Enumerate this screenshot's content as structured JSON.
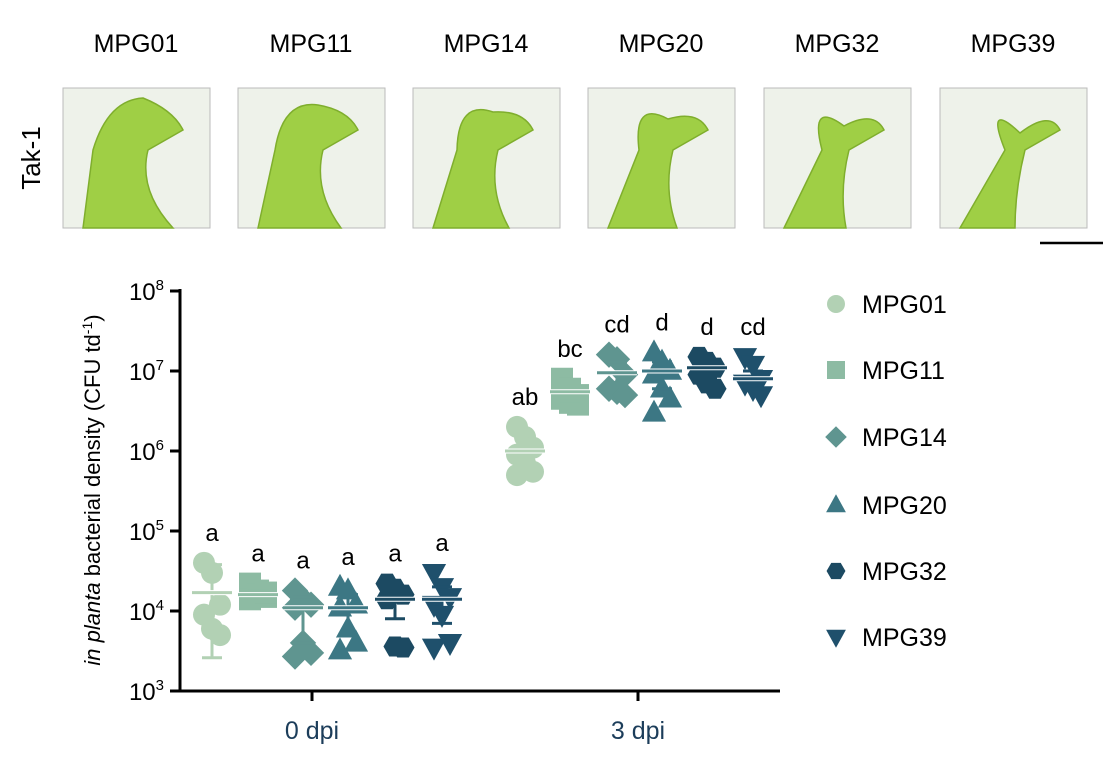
{
  "panel": {
    "row_label": "Tak-1",
    "strains": [
      "MPG01",
      "MPG11",
      "MPG14",
      "MPG20",
      "MPG32",
      "MPG39"
    ]
  },
  "chart_data": {
    "type": "scatter",
    "ylabel_italic": "in planta",
    "ylabel_rest": " bacterial density (CFU td",
    "ylabel_sup": "-1",
    "ylabel_close": ")",
    "yscale": "log",
    "ylim": [
      1000,
      100000000
    ],
    "ytick_exponents": [
      3,
      4,
      5,
      6,
      7,
      8
    ],
    "ytick_base": "10",
    "categories": [
      "0 dpi",
      "3 dpi"
    ],
    "legend_position": "right",
    "series": [
      {
        "name": "MPG01",
        "marker": "circle",
        "color": "#b2d1b4",
        "groups": [
          {
            "values": [
              40000,
              30000,
              12000,
              9000,
              6000,
              5000
            ],
            "mean": 17000,
            "err": [
              2600,
              38000
            ],
            "letter": "a"
          },
          {
            "values": [
              2000000,
              1500000,
              1100000,
              900000,
              700000,
              550000,
              500000
            ],
            "mean": 1000000,
            "err": [
              550000,
              1600000
            ],
            "letter": "ab"
          }
        ]
      },
      {
        "name": "MPG11",
        "marker": "square",
        "color": "#8dbba3",
        "groups": [
          {
            "values": [
              22000,
              18000,
              15000,
              14000,
              16000,
              17000
            ],
            "mean": 16000,
            "err": [
              14000,
              18000
            ],
            "letter": "a"
          },
          {
            "values": [
              8000000,
              6000000,
              5000000,
              4500000,
              4000000,
              3800000
            ],
            "mean": 5500000,
            "err": [
              4200000,
              6500000
            ],
            "letter": "bc"
          }
        ]
      },
      {
        "name": "MPG14",
        "marker": "diamond",
        "color": "#5f9590",
        "groups": [
          {
            "values": [
              18000,
              14000,
              12000,
              11000,
              4000,
              3000,
              2700
            ],
            "mean": 11000,
            "err": [
              4000,
              15000
            ],
            "letter": "a"
          },
          {
            "values": [
              16000000,
              14000000,
              9000000,
              6000000,
              5500000,
              5000000
            ],
            "mean": 9500000,
            "err": [
              6500000,
              13000000
            ],
            "letter": "cd"
          }
        ]
      },
      {
        "name": "MPG20",
        "marker": "triangle-up",
        "color": "#3c7784",
        "groups": [
          {
            "values": [
              20000,
              18000,
              12000,
              11000,
              6000,
              4000,
              3200
            ],
            "mean": 11000,
            "err": [
              5000,
              16000
            ],
            "letter": "a"
          },
          {
            "values": [
              17000000,
              13000000,
              10000000,
              9000000,
              6000000,
              4500000,
              3000000
            ],
            "mean": 10000000,
            "err": [
              6000000,
              13000000
            ],
            "letter": "d"
          }
        ]
      },
      {
        "name": "MPG32",
        "marker": "hexagon",
        "color": "#1c4a62",
        "groups": [
          {
            "values": [
              22000,
              19000,
              16000,
              14000,
              3600,
              3500
            ],
            "mean": 14000,
            "err": [
              8000,
              18000
            ],
            "letter": "a"
          },
          {
            "values": [
              15000000,
              13000000,
              11000000,
              9000000,
              7000000,
              6000000
            ],
            "mean": 11000000,
            "err": [
              8000000,
              13000000
            ],
            "letter": "d"
          }
        ]
      },
      {
        "name": "MPG39",
        "marker": "triangle-down",
        "color": "#1f506c",
        "groups": [
          {
            "values": [
              30000,
              20000,
              15000,
              12000,
              9000,
              4000,
              3500
            ],
            "mean": 14000,
            "err": [
              7000,
              20000
            ],
            "letter": "a"
          },
          {
            "values": [
              15000000,
              12000000,
              8000000,
              7000000,
              6000000,
              5000000
            ],
            "mean": 8000000,
            "err": [
              6000000,
              10000000
            ],
            "letter": "cd"
          }
        ]
      }
    ]
  }
}
